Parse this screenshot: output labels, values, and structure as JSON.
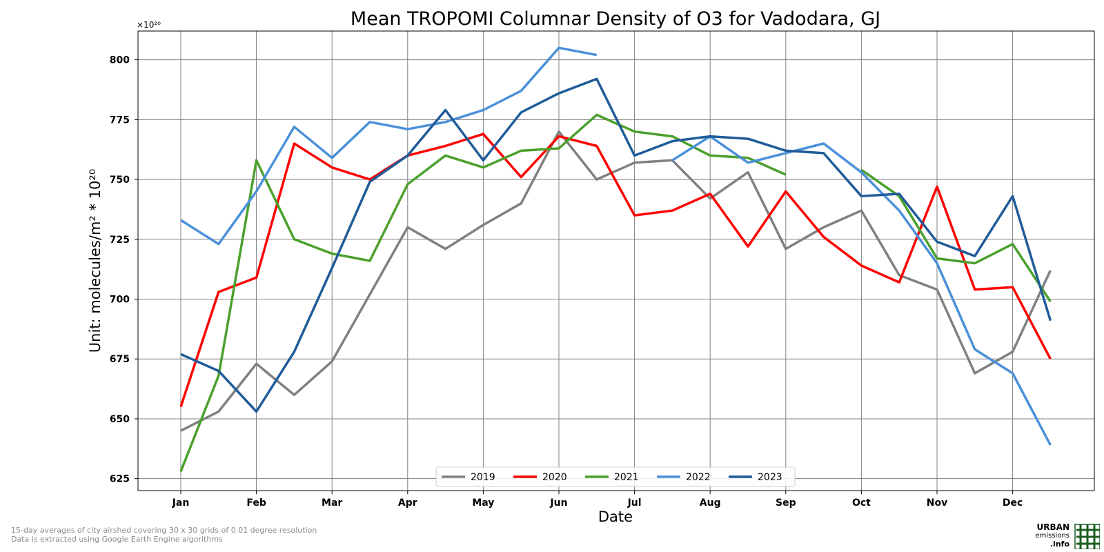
{
  "chart_data": {
    "type": "line",
    "title": "Mean TROPOMI Columnar Density of O3 for Vadodara, GJ",
    "xlabel": "Date",
    "ylabel": "Unit: molecules/m² * 10²⁰",
    "offset_label": "×10²⁰",
    "ylim": [
      620,
      812
    ],
    "yticks": [
      625,
      650,
      675,
      700,
      725,
      750,
      775,
      800
    ],
    "xticks": [
      "Jan",
      "Feb",
      "Mar",
      "Apr",
      "May",
      "Jun",
      "Jul",
      "Aug",
      "Sep",
      "Oct",
      "Nov",
      "Dec"
    ],
    "grid": true,
    "legend_position": "bottom-center",
    "series": [
      {
        "name": "2019",
        "color": "#808080",
        "values": [
          645,
          653,
          673,
          660,
          674,
          702,
          730,
          721,
          731,
          740,
          770,
          750,
          757,
          758,
          742,
          753,
          721,
          730,
          737,
          710,
          704,
          669,
          678,
          712
        ]
      },
      {
        "name": "2020",
        "color": "#ff0000",
        "values": [
          655,
          703,
          709,
          765,
          755,
          750,
          760,
          764,
          769,
          751,
          768,
          764,
          735,
          737,
          744,
          722,
          745,
          726,
          714,
          707,
          747,
          704,
          705,
          675
        ]
      },
      {
        "name": "2021",
        "color": "#4aa02c",
        "values": [
          628,
          668,
          758,
          725,
          719,
          716,
          748,
          760,
          755,
          762,
          763,
          777,
          770,
          768,
          760,
          759,
          752,
          null,
          754,
          743,
          717,
          715,
          723,
          699
        ]
      },
      {
        "name": "2022",
        "color": "#4a90d9",
        "values": [
          733,
          723,
          745,
          772,
          759,
          774,
          771,
          774,
          779,
          787,
          805,
          802,
          null,
          758,
          768,
          757,
          761,
          765,
          753,
          737,
          715,
          679,
          669,
          639
        ]
      },
      {
        "name": "2023",
        "color": "#1f5b99",
        "values": [
          677,
          670,
          653,
          678,
          713,
          749,
          760,
          779,
          758,
          778,
          786,
          792,
          760,
          766,
          768,
          767,
          762,
          761,
          743,
          744,
          724,
          718,
          743,
          691
        ]
      }
    ]
  },
  "footer": {
    "line1": "15-day averages of city airshed covering 30 x 30 grids of 0.01 degree resolution",
    "line2": "Data is extracted using Google Earth Engine algorithms"
  },
  "logo": {
    "line1": "URBAN",
    "line2": "emissions",
    "line3": ".info",
    "color": "#1b5e20"
  }
}
